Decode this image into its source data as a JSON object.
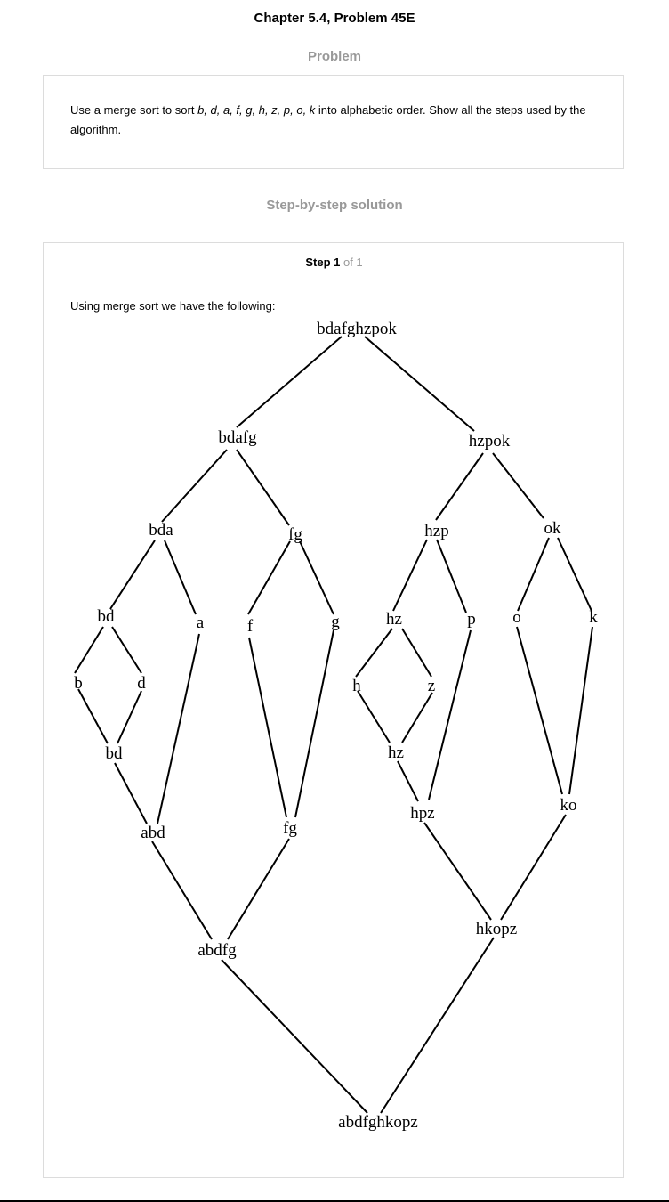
{
  "header": {
    "title": "Chapter 5.4, Problem 45E",
    "problem_heading": "Problem",
    "solution_heading": "Step-by-step solution"
  },
  "problem": {
    "lead": "Use a merge sort to sort ",
    "items": "b, d, a, f, g, h, z, p, o, k",
    "tail": " into alphabetic order. Show all the steps used by the algorithm."
  },
  "solution": {
    "step_label": "Step 1",
    "step_of": " of 1",
    "intro": "Using merge sort we have the following:"
  },
  "tree": {
    "root": "bdafghzpok",
    "left_half": "bdafg",
    "right_half": "hzpok",
    "bda": "bda",
    "fg_split": "fg",
    "hzp": "hzp",
    "ok": "ok",
    "bd_split": "bd",
    "a": "a",
    "f": "f",
    "g": "g",
    "hz_split": "hz",
    "p": "p",
    "o": "o",
    "k": "k",
    "b": "b",
    "d": "d",
    "h": "h",
    "z": "z",
    "bd_merged": "bd",
    "hz_merged": "hz",
    "abd": "abd",
    "fg_merged": "fg",
    "hpz": "hpz",
    "ko": "ko",
    "abdfg": "abdfg",
    "hkopz": "hkopz",
    "result": "abdfghkopz"
  }
}
